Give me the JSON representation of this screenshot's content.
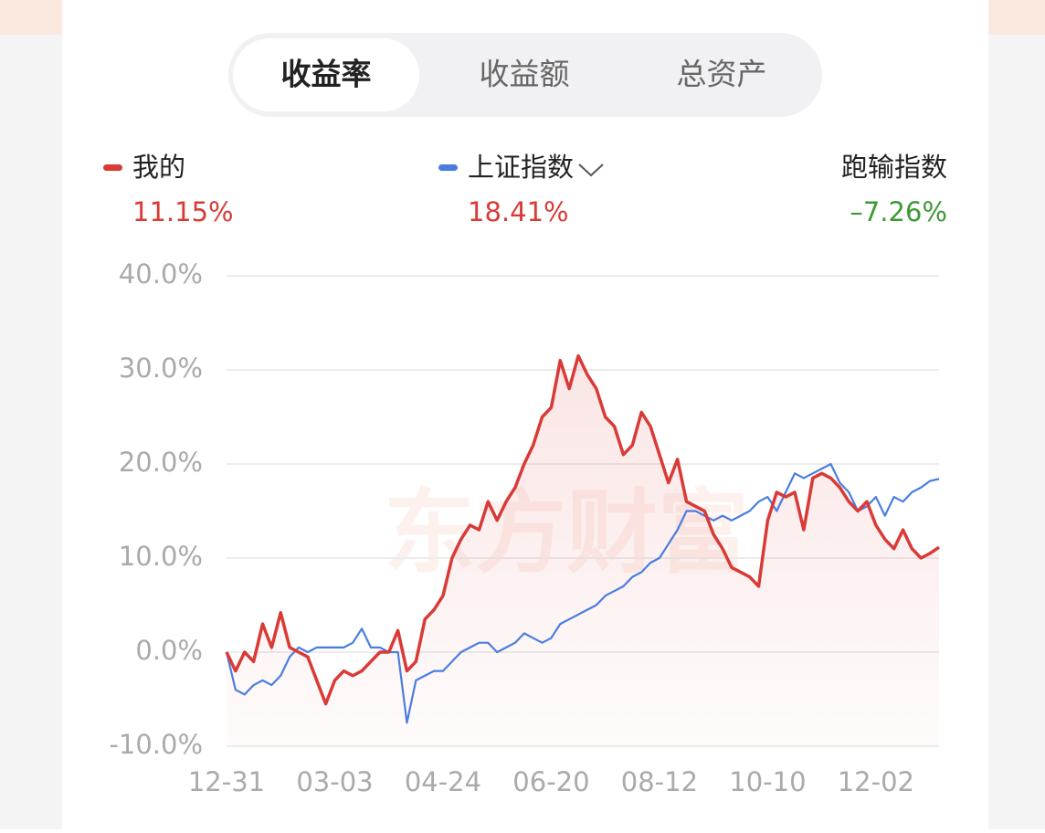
{
  "tabs": [
    "收益率",
    "收益额",
    "总资产"
  ],
  "active_tab": 0,
  "chart_data": {
    "type": "line",
    "watermark": "东方财富",
    "series": [
      {
        "name": "我的",
        "color": "#d93a36",
        "return_label": "11.15%",
        "values": [
          0,
          -2,
          0,
          -1,
          3,
          0.5,
          4.2,
          0.5,
          0,
          -0.5,
          -3,
          -5.5,
          -3,
          -2,
          -2.5,
          -2,
          -1,
          0,
          0,
          2.3,
          -2,
          -1,
          3.5,
          4.5,
          6,
          10,
          12,
          13.5,
          13,
          16,
          14,
          16,
          17.5,
          20,
          22,
          25,
          26,
          31,
          28,
          31.5,
          29.5,
          28,
          25,
          24,
          21,
          22,
          25.5,
          24,
          21,
          18,
          20.5,
          16,
          15.5,
          15,
          12.5,
          11,
          9,
          8.5,
          8,
          7,
          14,
          17,
          16.5,
          17,
          13,
          18.5,
          19,
          18.5,
          17.5,
          16,
          15,
          16,
          13.5,
          12,
          11,
          13,
          11,
          10,
          10.5,
          11.15
        ]
      },
      {
        "name": "上证指数",
        "color": "#4a7de0",
        "return_label": "18.41%",
        "values": [
          0,
          -4,
          -4.5,
          -3.5,
          -3,
          -3.5,
          -2.5,
          -0.5,
          0.5,
          0,
          0.5,
          0.5,
          0.5,
          0.5,
          1,
          2.5,
          0.5,
          0.5,
          0,
          0,
          -7.5,
          -3,
          -2.5,
          -2,
          -2,
          -1,
          0,
          0.5,
          1,
          1,
          0,
          0.5,
          1,
          2,
          1.5,
          1,
          1.5,
          3,
          3.5,
          4,
          4.5,
          5,
          6,
          6.5,
          7,
          8,
          8.5,
          9.5,
          10,
          11.5,
          13,
          15,
          15,
          14.5,
          14,
          14.5,
          14,
          14.5,
          15,
          16,
          16.5,
          15,
          17,
          19,
          18.5,
          19,
          19.5,
          20,
          18,
          17,
          15,
          15.5,
          16.5,
          14.5,
          16.5,
          16,
          17,
          17.5,
          18.2,
          18.41
        ]
      }
    ],
    "comparison": {
      "label": "跑输指数",
      "value_label": "–7.26%",
      "color": "#3c9a34"
    },
    "categories": [
      "12-31",
      null,
      null,
      null,
      null,
      null,
      null,
      null,
      null,
      null,
      null,
      null,
      "03-03",
      null,
      null,
      null,
      null,
      null,
      null,
      null,
      null,
      null,
      null,
      null,
      "04-24",
      null,
      null,
      null,
      null,
      null,
      null,
      null,
      null,
      null,
      null,
      null,
      "06-20",
      null,
      null,
      null,
      null,
      null,
      null,
      null,
      null,
      null,
      null,
      null,
      "08-12",
      null,
      null,
      null,
      null,
      null,
      null,
      null,
      null,
      null,
      null,
      null,
      "10-10",
      null,
      null,
      null,
      null,
      null,
      null,
      null,
      null,
      null,
      null,
      null,
      "12-02",
      null,
      null,
      null,
      null,
      null,
      null,
      null
    ],
    "ylim": [
      -10,
      40
    ],
    "yticks": [
      {
        "value": -10,
        "label": "-10.0%"
      },
      {
        "value": 0,
        "label": "0.0%"
      },
      {
        "value": 10,
        "label": "10.0%"
      },
      {
        "value": 20,
        "label": "20.0%"
      },
      {
        "value": 30,
        "label": "30.0%"
      },
      {
        "value": 40,
        "label": "40.0%"
      }
    ],
    "grid": true
  }
}
